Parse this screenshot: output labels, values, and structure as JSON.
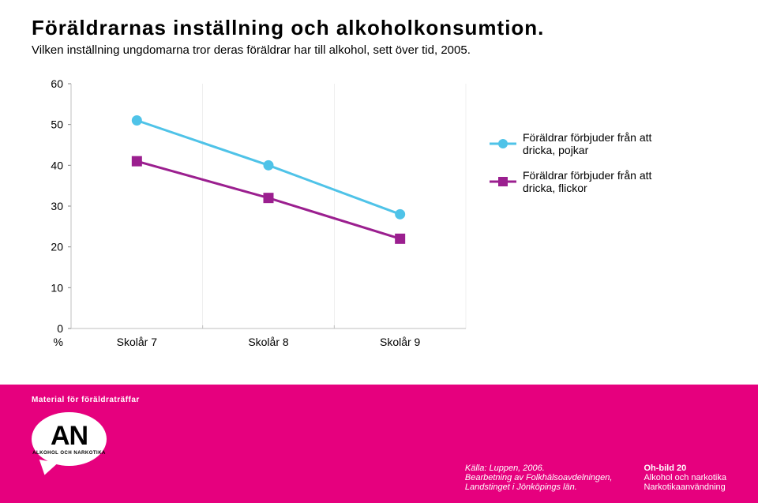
{
  "title": "Föräldrarnas inställning och alkoholkonsumtion.",
  "subtitle": "Vilken inställning ungdomarna tror deras föräldrar har till alkohol, sett över tid, 2005.",
  "chart": {
    "type": "line",
    "ylim": [
      0,
      60
    ],
    "ytick_step": 10,
    "yticks": [
      0,
      10,
      20,
      30,
      40,
      50,
      60
    ],
    "categories": [
      "Skolår 7",
      "Skolår 8",
      "Skolår 9"
    ],
    "y_suffix": "%",
    "background_color": "#ffffff",
    "grid_color": "#bfbfbf",
    "axis_label_fontsize": 14,
    "line_width": 3,
    "marker_size": 6,
    "series": [
      {
        "key": "pojkar",
        "label": "Föräldrar förbjuder från att dricka, pojkar",
        "color": "#4fc3e8",
        "marker": "circle",
        "values": [
          51,
          40,
          28
        ]
      },
      {
        "key": "flickor",
        "label": "Föräldrar förbjuder från att dricka, flickor",
        "color": "#9b1f8f",
        "marker": "square",
        "values": [
          41,
          32,
          22
        ]
      }
    ]
  },
  "footer": {
    "bg_color": "#e6007e",
    "top_label": "Material för föräldraträffar",
    "bubble_big": "AN",
    "bubble_small": "ALKOHOL OCH NARKOTIKA",
    "source_lines": [
      "Källa: Luppen, 2006.",
      "Bearbetning av Folkhälsoavdelningen,",
      "Landstinget i Jönköpings län."
    ],
    "oh_title": "Oh-bild 20",
    "oh_sub1": "Alkohol och narkotika",
    "oh_sub2": "Narkotikaanvändning"
  }
}
